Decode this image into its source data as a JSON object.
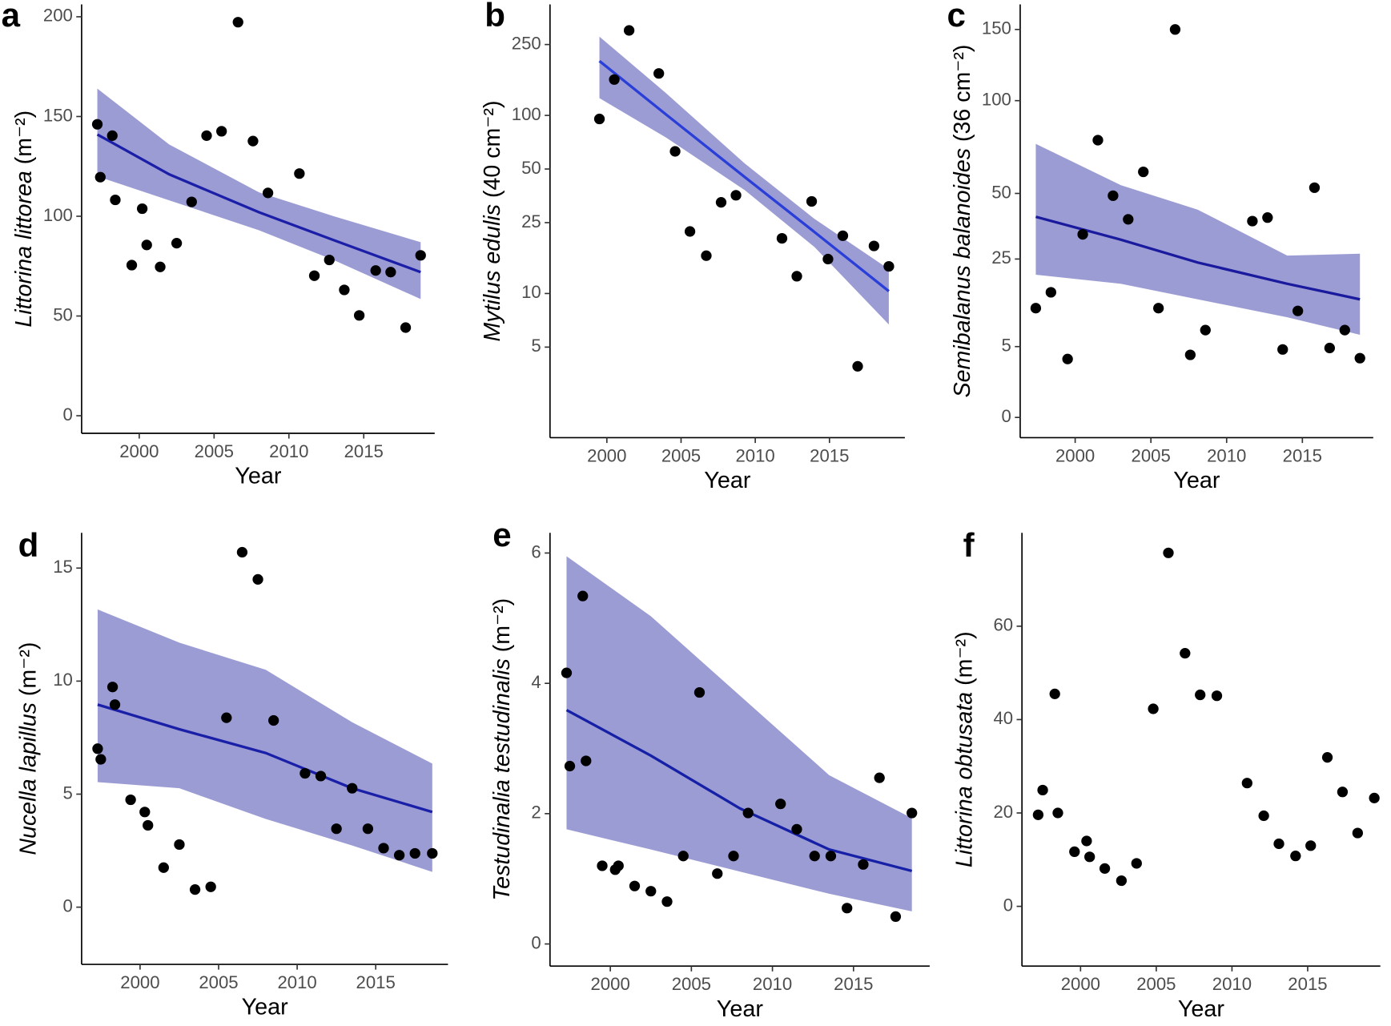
{
  "chart_data": [
    {
      "type": "scatter",
      "panel": "a",
      "ylabel": "Littorina littorea",
      "ylabel_unit": "(m⁻²)",
      "xlabel": "Year",
      "x": [
        1997.2,
        1997.4,
        1998.2,
        1998.4,
        1999.5,
        2000.2,
        2000.5,
        2001.4,
        2002.5,
        2003.5,
        2004.5,
        2005.5,
        2006.6,
        2007.6,
        2008.6,
        2010.7,
        2011.7,
        2012.7,
        2013.7,
        2014.7,
        2015.8,
        2016.8,
        2017.8,
        2018.8
      ],
      "values": [
        146.1,
        119.6,
        140.4,
        108.2,
        75.5,
        103.8,
        85.6,
        74.6,
        86.5,
        107.2,
        140.4,
        142.6,
        197.3,
        137.7,
        111.7,
        121.4,
        70.2,
        78.1,
        63.1,
        50.3,
        72.8,
        72.0,
        44.2,
        80.4
      ],
      "fit": {
        "x": [
          1997.2,
          2002,
          2008,
          2013,
          2018.8
        ],
        "y": [
          141,
          121,
          102,
          88,
          72
        ],
        "lower": [
          120,
          108,
          93,
          78,
          58.5
        ],
        "upper": [
          164,
          136,
          112,
          100,
          87
        ],
        "color": "#1b1fa8",
        "band_color": "#9c9cd4"
      },
      "color": "#000000",
      "xlim": [
        1996.15,
        2019.74
      ],
      "ylim": [
        -8.8,
        206.2
      ],
      "xticks": [
        2000,
        2005,
        2010,
        2015
      ],
      "yticks": [
        0,
        50,
        100,
        150,
        200
      ]
    },
    {
      "type": "scatter",
      "panel": "b",
      "ylabel": "Mytilus edulis",
      "ylabel_unit": "(40 cm⁻²)",
      "xlabel": "Year",
      "yscale": "log",
      "x": [
        1999.5,
        2000.5,
        2001.5,
        2003.5,
        2004.6,
        2005.6,
        2006.7,
        2007.7,
        2008.7,
        2011.8,
        2012.8,
        2013.8,
        2014.9,
        2015.9,
        2016.9,
        2018.0,
        2019.0
      ],
      "values": [
        95.5,
        159,
        300,
        172,
        62.8,
        22.3,
        16.3,
        32.5,
        35.6,
        20.4,
        12.5,
        32.9,
        15.6,
        21.1,
        3.9,
        18.5,
        14.2
      ],
      "fit": {
        "x": [
          1999.5,
          2004,
          2009.3,
          2014,
          2019.0
        ],
        "y": [
          202,
          101,
          45,
          22.1,
          10.3
        ],
        "lower": [
          125,
          75,
          38,
          18.2,
          6.7
        ],
        "upper": [
          277,
          133,
          53.6,
          26.2,
          13.7
        ],
        "color": "#2a3ed8",
        "band_color": "#9c9cd4"
      },
      "color": "#000000",
      "xlim": [
        1996.17,
        2020.08
      ],
      "ylim": [
        1.55,
        420
      ],
      "xticks": [
        2000,
        2005,
        2010,
        2015
      ],
      "yticks": [
        5,
        10,
        25,
        50,
        100,
        250
      ]
    },
    {
      "type": "scatter",
      "panel": "c",
      "ylabel": "Semibalanus balanoides",
      "ylabel_unit": "(36 cm⁻²)",
      "xlabel": "Year",
      "yscale": "sqrt",
      "x": [
        1997.4,
        1998.4,
        1999.5,
        2000.5,
        2001.5,
        2002.5,
        2003.5,
        2004.5,
        2005.5,
        2006.6,
        2007.6,
        2008.6,
        2011.7,
        2012.7,
        2013.7,
        2014.7,
        2015.8,
        2016.8,
        2017.8,
        2018.8
      ],
      "values": [
        11.9,
        15.6,
        3.4,
        33.4,
        76.6,
        49,
        39.1,
        60.1,
        11.9,
        150,
        3.9,
        7.6,
        38.4,
        39.8,
        4.6,
        11.3,
        52.6,
        4.8,
        7.6,
        3.5
      ],
      "fit": {
        "x": [
          1997.4,
          2003,
          2008.1,
          2014,
          2018.8
        ],
        "y": [
          40.1,
          31.5,
          23.9,
          17.8,
          13.9
        ],
        "lower": [
          20.3,
          17.8,
          13.9,
          10.0,
          6.8
        ],
        "upper": [
          74.6,
          53.8,
          43,
          26.1,
          26.7
        ],
        "color": "#1a1a9e",
        "band_color": "#9c9cd4"
      },
      "color": "#000000",
      "xlim": [
        1996.37,
        2019.68
      ],
      "ylim": [
        -0.41,
        170
      ],
      "xticks": [
        2000,
        2005,
        2010,
        2015
      ],
      "yticks": [
        0,
        5,
        25,
        50,
        100,
        150
      ]
    },
    {
      "type": "scatter",
      "panel": "d",
      "ylabel": "Nucella lapillus",
      "ylabel_unit": "(m⁻²)",
      "xlabel": "Year",
      "x": [
        1997.3,
        1997.5,
        1998.25,
        1998.4,
        1999.4,
        2000.3,
        2000.5,
        2001.5,
        2002.5,
        2003.5,
        2004.5,
        2005.5,
        2006.5,
        2007.5,
        2008.5,
        2010.5,
        2011.5,
        2012.5,
        2013.5,
        2014.5,
        2015.5,
        2016.5,
        2017.5,
        2018.6
      ],
      "values": [
        7.01,
        6.54,
        9.74,
        8.96,
        4.75,
        4.21,
        3.62,
        1.75,
        2.77,
        0.78,
        0.9,
        8.38,
        15.7,
        14.5,
        8.26,
        5.92,
        5.8,
        3.47,
        5.26,
        3.47,
        2.61,
        2.3,
        2.38,
        2.38
      ],
      "fit": {
        "x": [
          1997.3,
          2002.5,
          2008,
          2013.5,
          2018.6
        ],
        "y": [
          8.96,
          7.87,
          6.82,
          5.26,
          4.21
        ],
        "lower": [
          5.53,
          5.26,
          3.9,
          2.73,
          1.56
        ],
        "upper": [
          13.17,
          11.7,
          10.5,
          8.18,
          6.35
        ],
        "color": "#1a1fa8",
        "band_color": "#9c9cd4"
      },
      "color": "#000000",
      "xlim": [
        1996.28,
        2019.6
      ],
      "ylim": [
        -2.53,
        16.56
      ],
      "xticks": [
        2000,
        2005,
        2010,
        2015
      ],
      "yticks": [
        0,
        5,
        10,
        15
      ]
    },
    {
      "type": "scatter",
      "panel": "e",
      "ylabel": "Testudinalia testudinalis",
      "ylabel_unit": "(m⁻²)",
      "xlabel": "Year",
      "x": [
        1997.3,
        1997.5,
        1998.3,
        1998.5,
        1999.5,
        2000.3,
        2000.5,
        2001.5,
        2002.5,
        2003.5,
        2004.5,
        2005.5,
        2006.6,
        2007.6,
        2008.5,
        2010.5,
        2011.5,
        2012.6,
        2013.6,
        2014.6,
        2015.6,
        2016.6,
        2017.6,
        2018.6
      ],
      "values": [
        4.16,
        2.73,
        5.34,
        2.81,
        1.2,
        1.14,
        1.2,
        0.89,
        0.81,
        0.65,
        1.35,
        3.86,
        1.08,
        1.35,
        2.01,
        2.15,
        1.76,
        1.35,
        1.35,
        0.55,
        1.22,
        2.55,
        0.42,
        2.01
      ],
      "fit": {
        "x": [
          1997.3,
          2002.5,
          2008,
          2013.5,
          2018.6
        ],
        "y": [
          3.59,
          2.89,
          2.08,
          1.45,
          1.12
        ],
        "lower": [
          1.76,
          1.45,
          1.11,
          0.77,
          0.5
        ],
        "upper": [
          5.95,
          5.03,
          3.81,
          2.59,
          1.93
        ],
        "color": "#1520a6",
        "band_color": "#9c9cd4"
      },
      "color": "#000000",
      "xlim": [
        1996.28,
        2019.7
      ],
      "ylim": [
        -0.34,
        6.31
      ],
      "xticks": [
        2000,
        2005,
        2010,
        2015
      ],
      "yticks": [
        0,
        2,
        4,
        6
      ]
    },
    {
      "type": "scatter",
      "panel": "f",
      "ylabel": "Littorina obtusata",
      "ylabel_unit": "(m⁻²)",
      "xlabel": "Year",
      "x": [
        1997.2,
        1997.5,
        1998.3,
        1998.5,
        1999.6,
        2000.4,
        2000.6,
        2001.6,
        2002.7,
        2003.7,
        2004.8,
        2005.8,
        2006.9,
        2007.9,
        2009.0,
        2011.0,
        2012.1,
        2013.1,
        2014.2,
        2015.2,
        2016.3,
        2017.3,
        2018.3,
        2019.4
      ],
      "values": [
        19.6,
        24.9,
        45.5,
        20.0,
        11.7,
        14.0,
        10.6,
        8.1,
        5.5,
        9.2,
        42.3,
        75.7,
        54.2,
        45.3,
        45.1,
        26.4,
        19.4,
        13.4,
        10.8,
        13.0,
        31.9,
        24.5,
        15.7,
        23.2
      ],
      "color": "#000000",
      "xlim": [
        1996.13,
        2019.8
      ],
      "ylim": [
        -12.8,
        80
      ],
      "xticks": [
        2000,
        2005,
        2010,
        2015
      ],
      "yticks": [
        0,
        20,
        40,
        60
      ]
    }
  ]
}
